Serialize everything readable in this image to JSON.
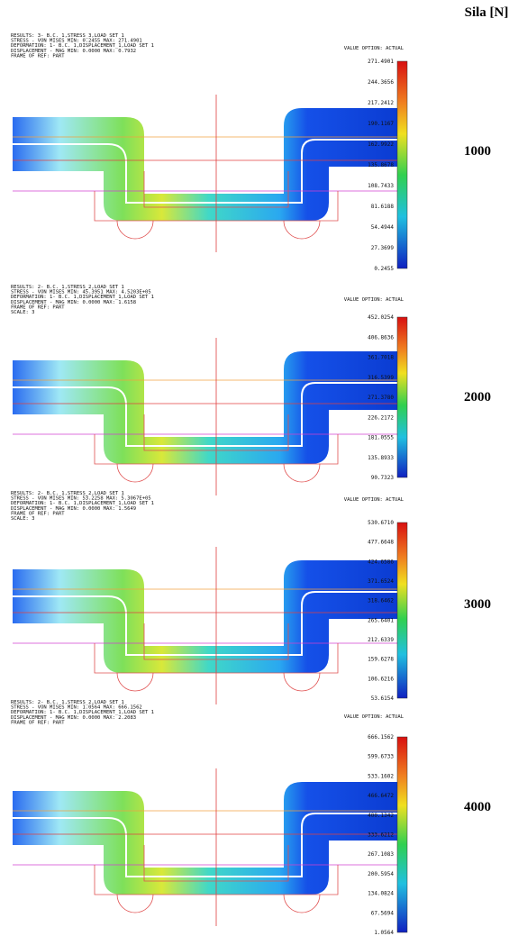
{
  "header": {
    "title": "Sila [N]"
  },
  "panels": [
    {
      "info": [
        "RESULTS: 3- B.C. 1,STRESS_3,LOAD SET 1",
        "STRESS - VON MISES MIN: 0.2455 MAX: 271.4901",
        "DEFORMATION: 1- B.C. 1,DISPLACEMENT_1,LOAD SET 1",
        "DISPLACEMENT - MAG MIN: 0.0000 MAX: 0.7932",
        "FRAME OF REF: PART"
      ],
      "value_option": "VALUE OPTION: ACTUAL",
      "scale": [
        "271.4901",
        "244.3656",
        "217.2412",
        "190.1167",
        "162.9922",
        "135.8678",
        "108.7433",
        "81.6188",
        "54.4944",
        "27.3699",
        "0.2455"
      ],
      "force": "1000"
    },
    {
      "info": [
        "RESULTS: 2- B.C. 1,STRESS_2,LOAD SET 1",
        "STRESS - VON MISES MIN: 45.3951 MAX: 4.5203E+05",
        "DEFORMATION: 1- B.C. 1,DISPLACEMENT_1,LOAD SET 1",
        "DISPLACEMENT - MAG MIN: 0.0000 MAX: 1.6158",
        "FRAME OF REF: PART",
        "SCALE: 3"
      ],
      "value_option": "VALUE OPTION: ACTUAL",
      "scale": [
        "452.0254",
        "406.8636",
        "361.7018",
        "316.5399",
        "271.3780",
        "226.2172",
        "181.0555",
        "135.8933",
        "90.7323"
      ],
      "force": "2000"
    },
    {
      "info": [
        "RESULTS: 2- B.C. 1,STRESS_2,LOAD SET 1",
        "STRESS - VON MISES MIN: 53.2258 MAX: 5.3067E+05",
        "DEFORMATION: 1- B.C. 1,DISPLACEMENT_1,LOAD SET 1",
        "DISPLACEMENT - MAG MIN: 0.0000 MAX: 1.5649",
        "FRAME OF REF: PART",
        "SCALE: 3"
      ],
      "value_option": "VALUE OPTION: ACTUAL",
      "scale": [
        "530.6710",
        "477.6648",
        "424.6586",
        "371.6524",
        "318.6462",
        "265.6401",
        "212.6339",
        "159.6278",
        "106.6216",
        "53.6154"
      ],
      "force": "3000"
    },
    {
      "info": [
        "RESULTS: 2- B.C. 1,STRESS_2,LOAD SET 1",
        "STRESS - VON MISES MIN: 1.0564 MAX: 666.1562",
        "DEFORMATION: 1- B.C. 1,DISPLACEMENT_1,LOAD SET 1",
        "DISPLACEMENT - MAG MIN: 0.0000 MAX: 2.2083",
        "FRAME OF REF: PART"
      ],
      "value_option": "VALUE OPTION: ACTUAL",
      "scale": [
        "666.1562",
        "599.6733",
        "533.1602",
        "466.6472",
        "400.1342",
        "333.6212",
        "267.1083",
        "200.5954",
        "134.0824",
        "67.5694",
        "1.0564"
      ],
      "force": "4000"
    }
  ]
}
